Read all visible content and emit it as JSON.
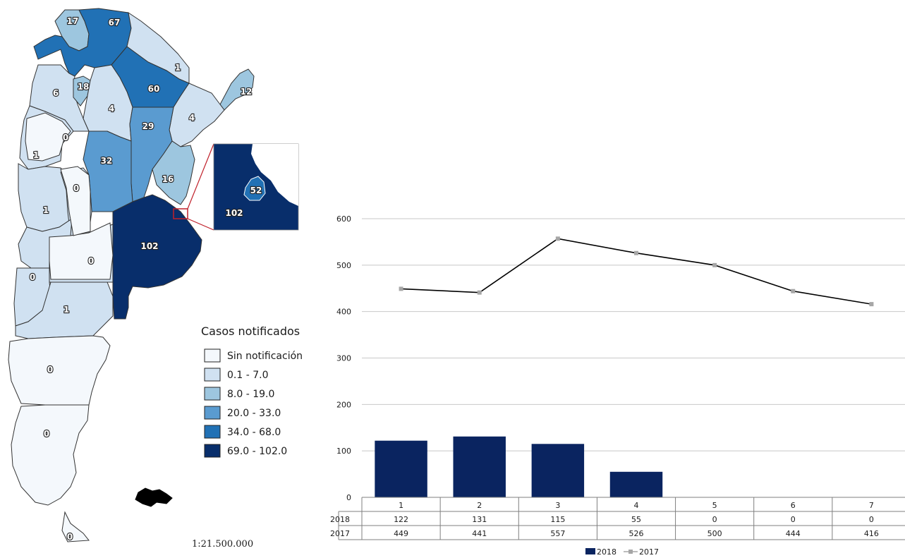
{
  "colors": {
    "sin": "#f4f8fc",
    "c1": "#d0e1f1",
    "c2": "#9dc6df",
    "c3": "#5a9bd0",
    "c4": "#2171b5",
    "c5": "#082e6b",
    "bar": "#0a2460",
    "line": "#000000",
    "marker": "#a6a6a6"
  },
  "map": {
    "legend_title": "Casos notificados",
    "legend": [
      {
        "label": "Sin notificación",
        "color_key": "sin"
      },
      {
        "label": "0.1 - 7.0",
        "color_key": "c1"
      },
      {
        "label": "8.0 - 19.0",
        "color_key": "c2"
      },
      {
        "label": "20.0 - 33.0",
        "color_key": "c3"
      },
      {
        "label": "34.0 - 68.0",
        "color_key": "c4"
      },
      {
        "label": "69.0 - 102.0",
        "color_key": "c5"
      }
    ],
    "scale": "1:21.500.000",
    "province_values": [
      "17",
      "67",
      "1",
      "6",
      "18",
      "60",
      "12",
      "4",
      "4",
      "29",
      "0",
      "1",
      "32",
      "16",
      "0",
      "1",
      "102",
      "0",
      "0",
      "1",
      "0",
      "0",
      "0"
    ],
    "inset_values": [
      "52",
      "102"
    ]
  },
  "chart_data": {
    "type": "bar",
    "categories": [
      "1",
      "2",
      "3",
      "4",
      "5",
      "6",
      "7"
    ],
    "series": [
      {
        "name": "2018",
        "type": "bar",
        "values": [
          122,
          131,
          115,
          55,
          0,
          0,
          0
        ]
      },
      {
        "name": "2017",
        "type": "line",
        "values": [
          449,
          441,
          557,
          526,
          500,
          444,
          416
        ]
      }
    ],
    "yticks": [
      "0",
      "100",
      "200",
      "300",
      "400",
      "500",
      "600"
    ],
    "ylim": [
      0,
      600
    ],
    "grid": true,
    "legend": "bottom",
    "table_labels": [
      "2018",
      "2017"
    ]
  }
}
